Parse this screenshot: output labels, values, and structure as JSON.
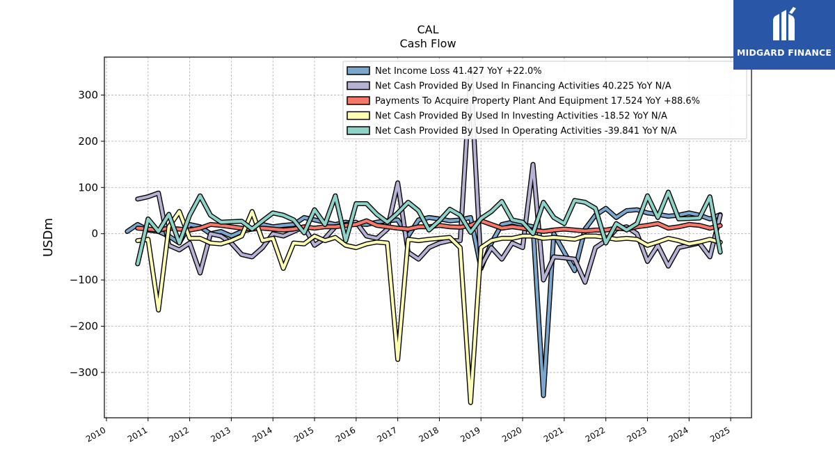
{
  "brand": {
    "name": "MIDGARD FINANCE",
    "logo_icon": "midgard-logo-icon",
    "color": "#2a56a8"
  },
  "chart_data": {
    "type": "line",
    "title": "CAL",
    "subtitle": "Cash Flow",
    "xlabel": "",
    "ylabel": "USDm",
    "xlim": [
      2009.95,
      2025.5
    ],
    "ylim": [
      -398,
      382
    ],
    "x_ticks": [
      2010,
      2011,
      2012,
      2013,
      2014,
      2015,
      2016,
      2017,
      2018,
      2019,
      2020,
      2021,
      2022,
      2023,
      2024,
      2025
    ],
    "y_ticks": [
      -300,
      -200,
      -100,
      0,
      100,
      200,
      300
    ],
    "y_tick_labels": [
      "−300",
      "−200",
      "−100",
      "0",
      "100",
      "200",
      "300"
    ],
    "grid": true,
    "legend_position": "top-right",
    "series": [
      {
        "name": "Net Income Loss  41.427 YoY +22.0%",
        "color": "#7ba7cc",
        "x": [
          2010.5,
          2010.75,
          2011.0,
          2011.25,
          2011.5,
          2011.75,
          2012.0,
          2012.25,
          2012.5,
          2012.75,
          2013.0,
          2013.25,
          2013.5,
          2013.75,
          2014.0,
          2014.25,
          2014.5,
          2014.75,
          2015.0,
          2015.25,
          2015.5,
          2015.75,
          2016.0,
          2016.25,
          2016.5,
          2016.75,
          2017.0,
          2017.25,
          2017.5,
          2017.75,
          2018.0,
          2018.25,
          2018.5,
          2018.75,
          2019.0,
          2019.25,
          2019.5,
          2019.75,
          2020.0,
          2020.25,
          2020.5,
          2020.75,
          2021.0,
          2021.25,
          2021.5,
          2021.75,
          2022.0,
          2022.25,
          2022.5,
          2022.75,
          2023.0,
          2023.25,
          2023.5,
          2023.75,
          2024.0,
          2024.25,
          2024.5,
          2024.75
        ],
        "values": [
          5,
          20,
          8,
          5,
          -5,
          -20,
          20,
          15,
          0,
          5,
          -5,
          5,
          10,
          20,
          15,
          18,
          20,
          35,
          30,
          25,
          20,
          25,
          22,
          20,
          25,
          28,
          30,
          -5,
          30,
          35,
          32,
          28,
          30,
          35,
          -75,
          -20,
          20,
          25,
          20,
          15,
          -350,
          0,
          -40,
          -80,
          10,
          40,
          55,
          35,
          50,
          52,
          45,
          42,
          38,
          40,
          45,
          40,
          32,
          41.427
        ]
      },
      {
        "name": "Net Cash Provided By Used In Financing Activities  40.225 YoY N/A",
        "color": "#b5b2d4",
        "x": [
          2010.75,
          2011.0,
          2011.25,
          2011.5,
          2011.75,
          2012.0,
          2012.25,
          2012.5,
          2012.75,
          2013.0,
          2013.25,
          2013.5,
          2013.75,
          2014.0,
          2014.25,
          2014.5,
          2014.75,
          2015.0,
          2015.25,
          2015.5,
          2015.75,
          2016.0,
          2016.25,
          2016.5,
          2016.75,
          2017.0,
          2017.25,
          2017.5,
          2017.75,
          2018.0,
          2018.25,
          2018.5,
          2018.75,
          2019.0,
          2019.25,
          2019.5,
          2019.75,
          2020.0,
          2020.25,
          2020.5,
          2020.75,
          2021.0,
          2021.25,
          2021.5,
          2021.75,
          2022.0,
          2022.25,
          2022.5,
          2022.75,
          2023.0,
          2023.25,
          2023.5,
          2023.75,
          2024.0,
          2024.25,
          2024.5,
          2024.75
        ],
        "values": [
          75,
          80,
          88,
          -25,
          -35,
          -20,
          -85,
          0,
          -5,
          -20,
          -45,
          -50,
          -30,
          0,
          -5,
          5,
          15,
          -25,
          -10,
          15,
          20,
          25,
          -5,
          -10,
          10,
          110,
          -40,
          -55,
          -30,
          -20,
          -15,
          -15,
          345,
          -70,
          -30,
          -55,
          -20,
          -30,
          150,
          -100,
          -50,
          -52,
          -55,
          -105,
          -30,
          -15,
          10,
          15,
          0,
          -60,
          -25,
          -70,
          -30,
          -25,
          -20,
          -50,
          40.225
        ]
      },
      {
        "name": "Payments To Acquire Property Plant And Equipment  17.524 YoY +88.6%",
        "color": "#f4786c",
        "x": [
          2010.75,
          2011.0,
          2011.25,
          2011.5,
          2011.75,
          2012.0,
          2012.25,
          2012.5,
          2012.75,
          2013.0,
          2013.25,
          2013.5,
          2013.75,
          2014.0,
          2014.25,
          2014.5,
          2014.75,
          2015.0,
          2015.25,
          2015.5,
          2015.75,
          2016.0,
          2016.25,
          2016.5,
          2016.75,
          2017.0,
          2017.25,
          2017.5,
          2017.75,
          2018.0,
          2018.25,
          2018.5,
          2018.75,
          2019.0,
          2019.25,
          2019.5,
          2019.75,
          2020.0,
          2020.25,
          2020.5,
          2020.75,
          2021.0,
          2021.25,
          2021.5,
          2021.75,
          2022.0,
          2022.25,
          2022.5,
          2022.75,
          2023.0,
          2023.25,
          2023.5,
          2023.75,
          2024.0,
          2024.25,
          2024.5,
          2024.75
        ],
        "values": [
          12,
          10,
          8,
          12,
          10,
          8,
          12,
          20,
          18,
          15,
          12,
          10,
          12,
          10,
          8,
          10,
          15,
          12,
          15,
          15,
          18,
          20,
          28,
          18,
          15,
          12,
          10,
          15,
          15,
          18,
          15,
          14,
          18,
          28,
          20,
          12,
          15,
          12,
          8,
          5,
          8,
          10,
          8,
          6,
          8,
          8,
          12,
          10,
          15,
          18,
          22,
          12,
          15,
          20,
          18,
          12,
          17.524
        ]
      },
      {
        "name": "Net Cash Provided By Used In Investing Activities  -18.52 YoY N/A",
        "color": "#ffffb3",
        "x": [
          2010.75,
          2011.0,
          2011.25,
          2011.5,
          2011.75,
          2012.0,
          2012.25,
          2012.5,
          2012.75,
          2013.0,
          2013.25,
          2013.5,
          2013.75,
          2014.0,
          2014.25,
          2014.5,
          2014.75,
          2015.0,
          2015.25,
          2015.5,
          2015.75,
          2016.0,
          2016.25,
          2016.5,
          2016.75,
          2017.0,
          2017.25,
          2017.5,
          2017.75,
          2018.0,
          2018.25,
          2018.5,
          2018.75,
          2019.0,
          2019.25,
          2019.5,
          2019.75,
          2020.0,
          2020.25,
          2020.5,
          2020.75,
          2021.0,
          2021.25,
          2021.5,
          2021.75,
          2022.0,
          2022.25,
          2022.5,
          2022.75,
          2023.0,
          2023.25,
          2023.5,
          2023.75,
          2024.0,
          2024.25,
          2024.5,
          2024.75
        ],
        "values": [
          -15,
          -12,
          -165,
          15,
          48,
          -10,
          -10,
          -20,
          -22,
          -15,
          -5,
          48,
          -15,
          -10,
          -75,
          -20,
          -22,
          -5,
          -15,
          -8,
          -25,
          -30,
          -22,
          -18,
          -20,
          -272,
          -12,
          -15,
          -12,
          -10,
          -8,
          -30,
          -365,
          -30,
          -15,
          -10,
          -10,
          -5,
          -5,
          -10,
          -8,
          -10,
          -12,
          -5,
          -5,
          -8,
          -12,
          -10,
          -12,
          -25,
          -18,
          -10,
          -15,
          -22,
          -18,
          -12,
          -18.52
        ]
      },
      {
        "name": "Net Cash Provided By Used In Operating Activities  -39.841 YoY N/A",
        "color": "#8dd3c7",
        "x": [
          2010.75,
          2011.0,
          2011.25,
          2011.5,
          2011.75,
          2012.0,
          2012.25,
          2012.5,
          2012.75,
          2013.0,
          2013.25,
          2013.5,
          2013.75,
          2014.0,
          2014.25,
          2014.5,
          2014.75,
          2015.0,
          2015.25,
          2015.5,
          2015.75,
          2016.0,
          2016.25,
          2016.5,
          2016.75,
          2017.0,
          2017.25,
          2017.5,
          2017.75,
          2018.0,
          2018.25,
          2018.5,
          2018.75,
          2019.0,
          2019.25,
          2019.5,
          2019.75,
          2020.0,
          2020.25,
          2020.5,
          2020.75,
          2021.0,
          2021.25,
          2021.5,
          2021.75,
          2022.0,
          2022.25,
          2022.5,
          2022.75,
          2023.0,
          2023.25,
          2023.5,
          2023.75,
          2024.0,
          2024.25,
          2024.5,
          2024.75
        ],
        "values": [
          -65,
          32,
          5,
          42,
          -20,
          40,
          82,
          40,
          25,
          26,
          27,
          10,
          28,
          45,
          40,
          30,
          2,
          52,
          20,
          82,
          -15,
          65,
          65,
          42,
          25,
          45,
          68,
          50,
          8,
          28,
          53,
          40,
          3,
          33,
          48,
          70,
          30,
          25,
          0,
          68,
          35,
          22,
          72,
          68,
          55,
          -20,
          22,
          8,
          22,
          82,
          35,
          90,
          32,
          33,
          34,
          80,
          -39.841
        ]
      }
    ]
  }
}
